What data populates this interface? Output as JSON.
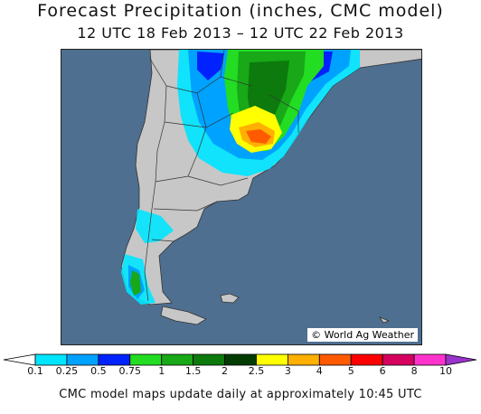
{
  "header": {
    "title": "Forecast Precipitation (inches, CMC model)",
    "subtitle": "12 UTC 18 Feb 2013 – 12 UTC 22 Feb 2013"
  },
  "map": {
    "credit": "© World Ag Weather",
    "colors": {
      "ocean": "#4e6f8f",
      "land": "#c7c7c7",
      "borders": "#333333"
    }
  },
  "legend": {
    "ticks": [
      "0.1",
      "0.25",
      "0.5",
      "0.75",
      "1",
      "1.5",
      "2",
      "2.5",
      "3",
      "4",
      "5",
      "6",
      "8",
      "10"
    ],
    "colors": [
      "#00e5ff",
      "#00a2ff",
      "#0022ff",
      "#22dd22",
      "#18a818",
      "#0c7a0c",
      "#033c03",
      "#ffff00",
      "#ffb000",
      "#ff5a00",
      "#ff0000",
      "#d6005f",
      "#ff33cc",
      "#9933cc"
    ]
  },
  "footer": {
    "note": "CMC model maps update daily at approximately 10:45 UTC"
  }
}
